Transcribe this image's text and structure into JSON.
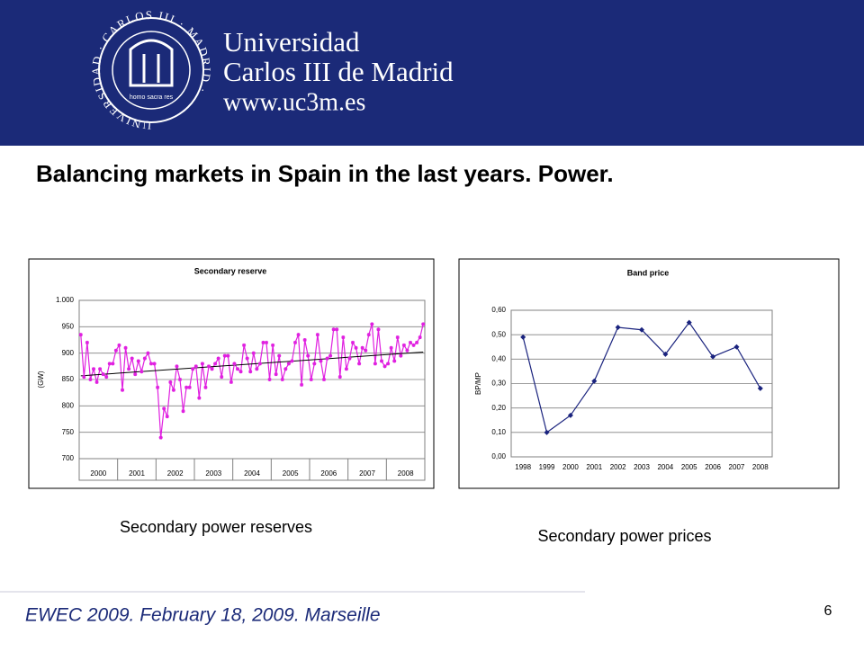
{
  "header": {
    "logo_text": "UNIVERSIDAD · CARLOS III · MADRID ·",
    "logo_motto": "homo sacra res",
    "line1": "Universidad",
    "line2": "Carlos III de Madrid",
    "line3": "www.uc3m.es"
  },
  "title": "Balancing markets in Spain in the last years. Power.",
  "chart_data": [
    {
      "type": "line",
      "title": "Secondary reserve",
      "y_label": "(GW)",
      "color": "#e020e0",
      "marker": "star",
      "grid": true,
      "categories": [
        null,
        null,
        null,
        null,
        null,
        null,
        "2000",
        null,
        null,
        null,
        null,
        null,
        null,
        null,
        null,
        null,
        null,
        null,
        "2001",
        null,
        null,
        null,
        null,
        null,
        null,
        null,
        null,
        null,
        null,
        null,
        "2002",
        null,
        null,
        null,
        null,
        null,
        null,
        null,
        null,
        null,
        null,
        null,
        "2003",
        null,
        null,
        null,
        null,
        null,
        null,
        null,
        null,
        null,
        null,
        null,
        "2004",
        null,
        null,
        null,
        null,
        null,
        null,
        null,
        null,
        null,
        null,
        null,
        "2005",
        null,
        null,
        null,
        null,
        null,
        null,
        null,
        null,
        null,
        null,
        null,
        "2006",
        null,
        null,
        null,
        null,
        null,
        null,
        null,
        null,
        null,
        null,
        null,
        "2007",
        null,
        null,
        null,
        null,
        null,
        null,
        null,
        null,
        null,
        null,
        null,
        "2008",
        null,
        null,
        null,
        null,
        null
      ],
      "values": [
        935,
        855,
        920,
        850,
        870,
        845,
        870,
        860,
        855,
        880,
        880,
        905,
        915,
        830,
        910,
        870,
        890,
        860,
        885,
        865,
        890,
        900,
        880,
        880,
        835,
        740,
        795,
        780,
        845,
        830,
        875,
        850,
        790,
        835,
        835,
        870,
        875,
        815,
        880,
        835,
        875,
        870,
        880,
        890,
        855,
        895,
        895,
        845,
        880,
        870,
        865,
        915,
        890,
        865,
        900,
        870,
        880,
        920,
        920,
        850,
        915,
        860,
        895,
        850,
        870,
        880,
        885,
        920,
        935,
        840,
        925,
        895,
        850,
        880,
        935,
        885,
        850,
        890,
        895,
        945,
        945,
        855,
        930,
        870,
        890,
        920,
        910,
        880,
        910,
        905,
        935,
        955,
        880,
        945,
        885,
        875,
        880,
        910,
        885,
        930,
        895,
        915,
        905,
        920,
        915,
        920,
        930,
        955
      ],
      "trendline": {
        "start": 857,
        "end": 902
      },
      "ylim": [
        700,
        1000
      ],
      "yticks": [
        700,
        750,
        800,
        850,
        900,
        950,
        {
          "value": 1000,
          "label": "1.000"
        }
      ]
    },
    {
      "type": "line",
      "title": "Band price",
      "y_label": "BP/MP",
      "color": "#1a237e",
      "marker": "diamond",
      "grid": true,
      "categories": [
        "1998",
        "1999",
        "2000",
        "2001",
        "2002",
        "2003",
        "2004",
        "2005",
        "2006",
        "2007",
        "2008"
      ],
      "values": [
        0.49,
        0.1,
        0.17,
        0.31,
        0.53,
        0.52,
        0.42,
        0.55,
        0.41,
        0.45,
        0.28
      ],
      "ylim": [
        0,
        0.6
      ],
      "yticks": [
        {
          "value": 0,
          "label": "0,00"
        },
        {
          "value": 0.1,
          "label": "0,10"
        },
        {
          "value": 0.2,
          "label": "0,20"
        },
        {
          "value": 0.3,
          "label": "0,30"
        },
        {
          "value": 0.4,
          "label": "0,40"
        },
        {
          "value": 0.5,
          "label": "0,50"
        },
        {
          "value": 0.6,
          "label": "0,60"
        }
      ]
    }
  ],
  "captions": [
    "Secondary power reserves",
    "Secondary power prices"
  ],
  "footer": "EWEC 2009. February 18, 2009. Marseille",
  "page_number": "6"
}
